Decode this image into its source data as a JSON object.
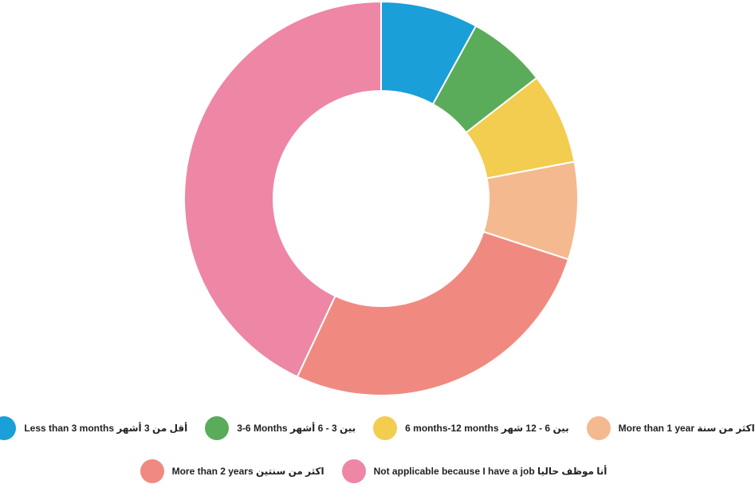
{
  "chart_data": {
    "type": "pie",
    "donut": true,
    "categories": [
      "Less than 3 months أقل من 3 أشهر",
      "3-6 Months بين 3 - 6 أشهر",
      "6 months-12 months بين 6 - 12 شهر",
      "More than 1 year اكثر من سنة",
      "More than 2 years اكثر من سنتين",
      "Not applicable because I have a job أنا موظف حاليا"
    ],
    "values": [
      8,
      6.5,
      7.5,
      8,
      27,
      43
    ],
    "colors": [
      "#1a9fd8",
      "#5aac5a",
      "#f2cd4f",
      "#f5b98f",
      "#f08a80",
      "#ee86a6"
    ],
    "legend_position": "bottom"
  }
}
